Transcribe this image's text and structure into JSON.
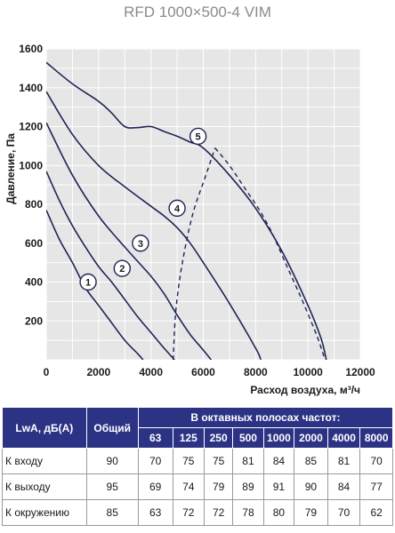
{
  "chart_data": {
    "type": "line",
    "title": "RFD 1000×500-4 VIM",
    "xlabel": "Расход воздуха, м³/ч",
    "ylabel": "Давление, Па",
    "xlim": [
      0,
      12000
    ],
    "ylim": [
      0,
      1600
    ],
    "xticks": [
      0,
      2000,
      4000,
      6000,
      8000,
      10000,
      12000
    ],
    "yticks": [
      200,
      400,
      600,
      800,
      1000,
      1200,
      1400,
      1600
    ],
    "grid": true,
    "series": [
      {
        "name": "1",
        "points": [
          [
            0,
            770
          ],
          [
            500,
            620
          ],
          [
            1000,
            500
          ],
          [
            1500,
            370
          ],
          [
            2000,
            280
          ],
          [
            2500,
            190
          ],
          [
            3000,
            100
          ],
          [
            3500,
            30
          ],
          [
            3700,
            0
          ]
        ]
      },
      {
        "name": "2",
        "points": [
          [
            0,
            970
          ],
          [
            500,
            820
          ],
          [
            1000,
            690
          ],
          [
            1500,
            580
          ],
          [
            2000,
            480
          ],
          [
            2500,
            400
          ],
          [
            3000,
            310
          ],
          [
            3500,
            220
          ],
          [
            4000,
            140
          ],
          [
            4500,
            60
          ],
          [
            4900,
            0
          ]
        ]
      },
      {
        "name": "3",
        "points": [
          [
            0,
            1220
          ],
          [
            1000,
            950
          ],
          [
            2000,
            740
          ],
          [
            3000,
            580
          ],
          [
            4000,
            430
          ],
          [
            4500,
            340
          ],
          [
            5000,
            230
          ],
          [
            5500,
            130
          ],
          [
            6000,
            50
          ],
          [
            6300,
            0
          ]
        ]
      },
      {
        "name": "4",
        "points": [
          [
            0,
            1380
          ],
          [
            1000,
            1160
          ],
          [
            2000,
            1000
          ],
          [
            3000,
            890
          ],
          [
            4000,
            790
          ],
          [
            4500,
            740
          ],
          [
            5000,
            680
          ],
          [
            5500,
            600
          ],
          [
            6000,
            500
          ],
          [
            7000,
            290
          ],
          [
            8000,
            60
          ],
          [
            8200,
            0
          ]
        ]
      },
      {
        "name": "5",
        "points": [
          [
            0,
            1530
          ],
          [
            1000,
            1420
          ],
          [
            2000,
            1330
          ],
          [
            2500,
            1270
          ],
          [
            3000,
            1200
          ],
          [
            3500,
            1195
          ],
          [
            4000,
            1200
          ],
          [
            4500,
            1175
          ],
          [
            5000,
            1150
          ],
          [
            5500,
            1120
          ],
          [
            6000,
            1090
          ],
          [
            7000,
            950
          ],
          [
            8000,
            780
          ],
          [
            9000,
            560
          ],
          [
            10000,
            280
          ],
          [
            10500,
            110
          ],
          [
            10700,
            0
          ]
        ]
      }
    ],
    "dashed_boundaries": [
      {
        "points": [
          [
            4850,
            0
          ],
          [
            4950,
            250
          ],
          [
            5200,
            500
          ],
          [
            5600,
            750
          ],
          [
            6100,
            950
          ],
          [
            6450,
            1090
          ]
        ]
      },
      {
        "points": [
          [
            6450,
            1090
          ],
          [
            7000,
            1000
          ],
          [
            7600,
            880
          ],
          [
            8100,
            780
          ],
          [
            8600,
            660
          ],
          [
            9200,
            480
          ],
          [
            9800,
            300
          ],
          [
            10350,
            120
          ],
          [
            10650,
            0
          ]
        ]
      }
    ],
    "markers": [
      {
        "label": "1",
        "x": 1600,
        "y": 400
      },
      {
        "label": "2",
        "x": 2900,
        "y": 470
      },
      {
        "label": "3",
        "x": 3600,
        "y": 600
      },
      {
        "label": "4",
        "x": 5000,
        "y": 780
      },
      {
        "label": "5",
        "x": 5800,
        "y": 1150
      }
    ]
  },
  "table": {
    "header_label": "LwA, дБ(A)",
    "header_total": "Общий",
    "header_bands": "В октавных полосах частот:",
    "bands": [
      "63",
      "125",
      "250",
      "500",
      "1000",
      "2000",
      "4000",
      "8000"
    ],
    "rows": [
      {
        "label": "К входу",
        "total": "90",
        "values": [
          "70",
          "75",
          "75",
          "81",
          "84",
          "85",
          "81",
          "70"
        ]
      },
      {
        "label": "К выходу",
        "total": "95",
        "values": [
          "69",
          "74",
          "79",
          "89",
          "91",
          "90",
          "84",
          "77"
        ]
      },
      {
        "label": "К окружению",
        "total": "85",
        "values": [
          "63",
          "72",
          "72",
          "78",
          "80",
          "79",
          "70",
          "62"
        ]
      }
    ]
  }
}
